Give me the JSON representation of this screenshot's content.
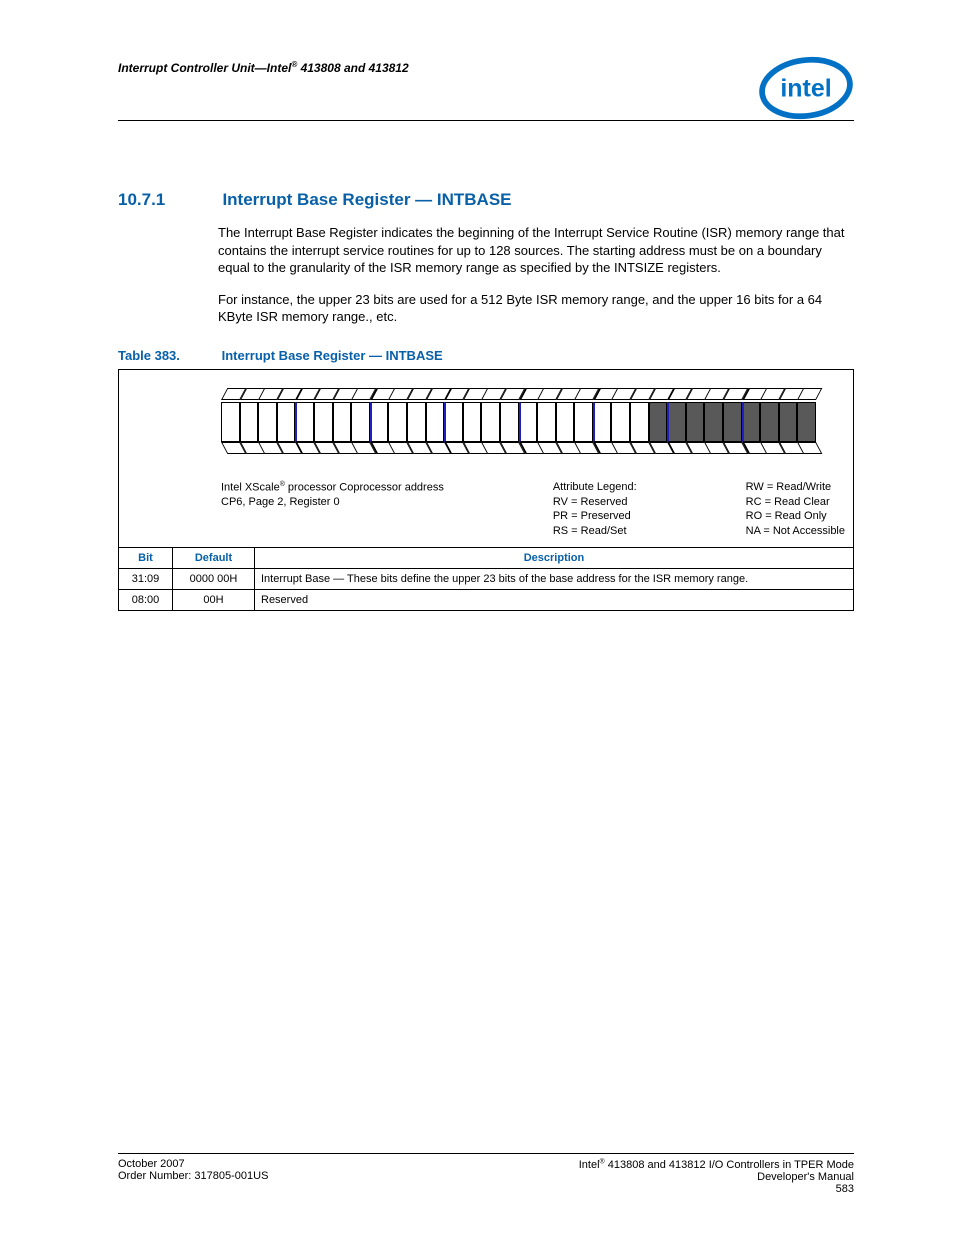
{
  "header": {
    "chapter_text": "Interrupt Controller Unit—Intel",
    "chapter_suffix": " 413808 and 413812",
    "reg_mark": "®"
  },
  "logo": {
    "stroke": "#0071c5",
    "fill": "#0071c5"
  },
  "section": {
    "number": "10.7.1",
    "title": "Interrupt Base Register — INTBASE",
    "para1": "The Interrupt Base Register indicates the beginning of the Interrupt Service Routine (ISR) memory range that contains the interrupt service routines for up to 128 sources. The starting address must be on a boundary equal to the granularity of the ISR memory range as specified by the INTSIZE registers.",
    "para2": "For instance, the upper 23 bits are used for a 512 Byte ISR memory range, and the upper 16 bits for a 64 KByte ISR memory range., etc."
  },
  "table_caption": {
    "label": "Table 383.",
    "title": "Interrupt Base Register — INTBASE"
  },
  "diagram": {
    "num_bits": 32,
    "rw_start": 0,
    "rw_end": 22,
    "ro_start": 23,
    "ro_end": 31,
    "group_size": 4,
    "colors": {
      "rw_bg": "#ffffff",
      "ro_bg": "#595959",
      "group_border": "#2020c0",
      "border": "#000000"
    },
    "address_label": "Intel XScale",
    "address_suffix": " processor Coprocessor address",
    "address_line2": "CP6, Page 2, Register 0",
    "legend_title": "Attribute Legend:",
    "legend_left": [
      "RV = Reserved",
      "PR = Preserved",
      "RS = Read/Set"
    ],
    "legend_right": [
      "RW = Read/Write",
      "RC = Read Clear",
      "RO = Read Only",
      "NA = Not Accessible"
    ]
  },
  "bit_table": {
    "headers": {
      "bit": "Bit",
      "default": "Default",
      "desc": "Description"
    },
    "rows": [
      {
        "bit": "31:09",
        "default": "0000 00H",
        "desc": "Interrupt Base — These bits define the upper 23 bits of the base address for the ISR memory range."
      },
      {
        "bit": "08:00",
        "default": "00H",
        "desc": "Reserved"
      }
    ]
  },
  "footer": {
    "left1": "October 2007",
    "left2": "Order Number: 317805-001US",
    "right1_prefix": "Intel",
    "right1_suffix": " 413808 and 413812 I/O Controllers in TPER Mode",
    "right2": "Developer's Manual",
    "page": "583"
  }
}
